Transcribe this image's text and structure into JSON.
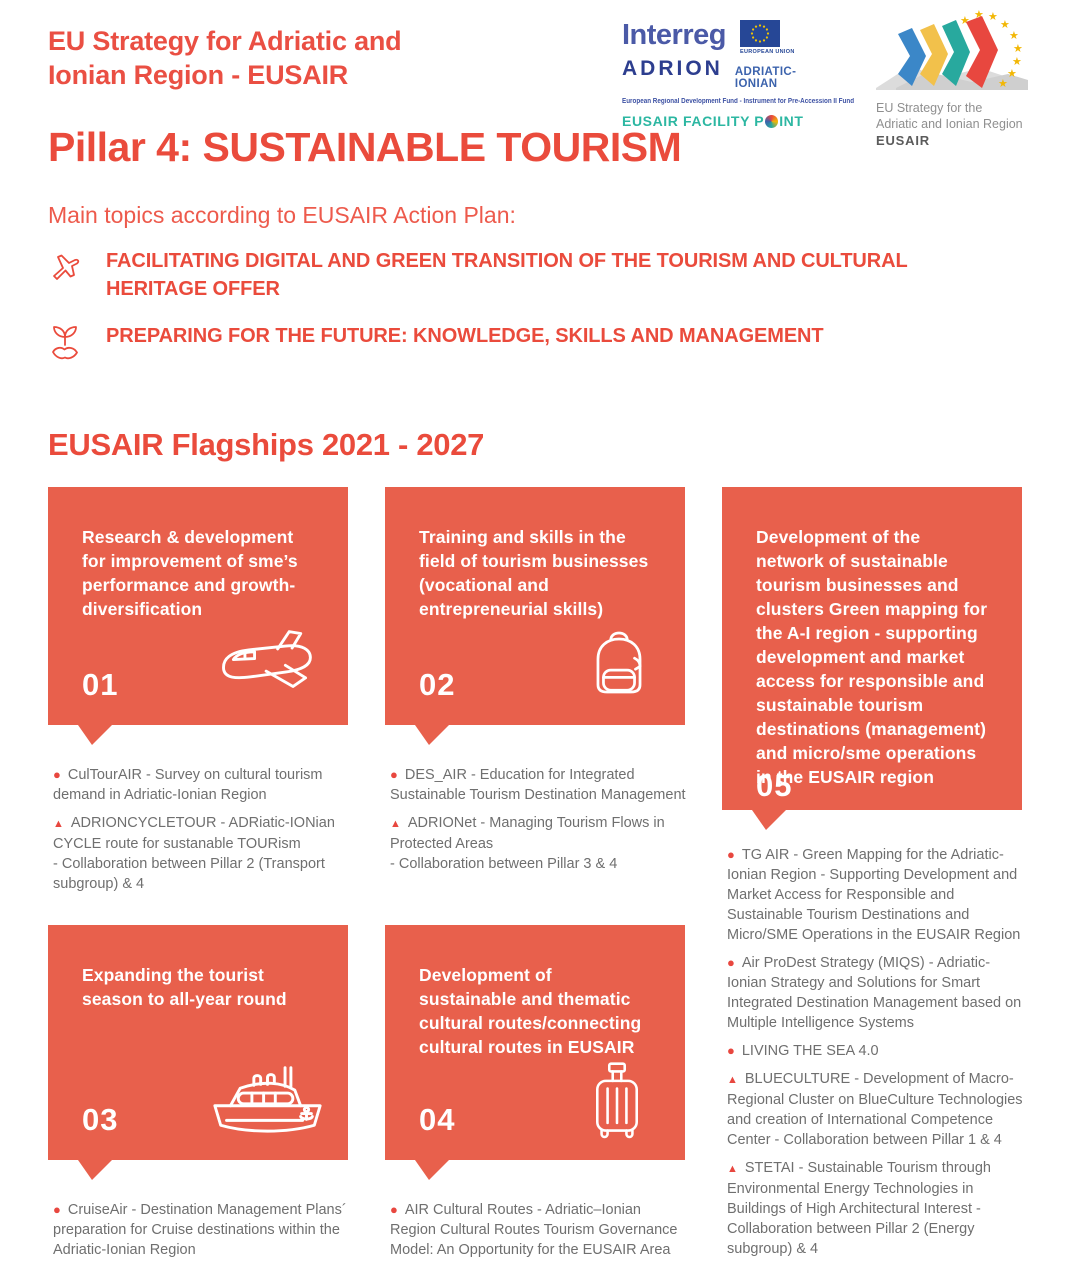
{
  "colors": {
    "accent_red": "#ea4b3c",
    "card_coral": "#e8604c",
    "bullet_text_gray": "#6f6f6f",
    "facility_teal": "#2cb7a2",
    "interreg_blue": "#3d51a3",
    "eu_flag_blue": "#264796",
    "star_gold": "#f2b705"
  },
  "header": {
    "title_line1": "EU Strategy for Adriatic and",
    "title_line2": "Ionian Region - EUSAIR",
    "logos": {
      "interreg_brand": "Interreg",
      "interreg_program": "ADRION",
      "interreg_subbrand": "ADRIATIC-IONIAN",
      "eu_label": "EUROPEAN UNION",
      "funds_line": "European Regional Development Fund - Instrument for Pre-Accession II Fund",
      "facility_prefix": "EUSAIR FACILITY P",
      "facility_suffix": "INT",
      "eusair_line1": "EU Strategy for the",
      "eusair_line2": "Adriatic and Ionian Region",
      "eusair_line3": "EUSAIR"
    }
  },
  "pillar": {
    "heading": "Pillar 4: SUSTAINABLE TOURISM"
  },
  "main_topics": {
    "intro": "Main topics according to EUSAIR Action Plan:",
    "items": [
      {
        "icon": "plane-icon",
        "text": "FACILITATING DIGITAL AND GREEN TRANSITION OF THE TOURISM AND CULTURAL HERITAGE OFFER"
      },
      {
        "icon": "hand-plant-icon",
        "text": "PREPARING FOR THE FUTURE: KNOWLEDGE, SKILLS AND MANAGEMENT"
      }
    ]
  },
  "flagships": {
    "heading": "EUSAIR Flagships 2021 - 2027",
    "cards": [
      {
        "number": "01",
        "icon": "airplane-icon",
        "title": "Research & development for improvement of sme’s performance and growth-diversification",
        "items": [
          {
            "marker": "●",
            "text": "CulTourAIR - Survey on cultural tourism demand in Adriatic-Ionian Region"
          },
          {
            "marker": "▲",
            "text": "ADRIONCYCLETOUR - ADRiatic-IONian CYCLE route for sustanable TOURism\n- Collaboration between Pillar 2 (Transport subgroup) & 4"
          }
        ]
      },
      {
        "number": "02",
        "icon": "backpack-icon",
        "title": "Training and skills in the field of tourism businesses (vocational and entrepreneurial skills)",
        "items": [
          {
            "marker": "●",
            "text": "DES_AIR - Education for Integrated Sustainable Tourism Destination Management"
          },
          {
            "marker": "▲",
            "text": "ADRIONet - Managing Tourism Flows in Protected Areas\n- Collaboration between Pillar 3 & 4"
          }
        ]
      },
      {
        "number": "03",
        "icon": "cruise-ship-icon",
        "title": "Expanding the tourist season to all-year round",
        "items": [
          {
            "marker": "●",
            "text": "CruiseAir - Destination Management Plans´ preparation for Cruise destinations within the Adriatic-Ionian Region"
          }
        ]
      },
      {
        "number": "04",
        "icon": "luggage-icon",
        "title": "Development of sustainable and thematic cultural routes/connecting cultural routes in EUSAIR",
        "items": [
          {
            "marker": "●",
            "text": "AIR Cultural Routes - Adriatic–Ionian Region Cultural Routes Tourism Governance Model: An Opportunity for the EUSAIR Area"
          }
        ]
      },
      {
        "number": "05",
        "icon": "none",
        "title": "Development of the network of sustainable tourism businesses and clusters Green mapping for the A-I region - supporting development and market access for responsible and sustainable tourism destinations (management) and micro/sme operations in the EUSAIR region",
        "items": [
          {
            "marker": "●",
            "text": "TG AIR -  Green Mapping for the  Adriatic-Ionian Region - Supporting Development and Market Access for Responsible and Sustainable Tourism Destinations and Micro/SME Operations in the EUSAIR Region"
          },
          {
            "marker": "●",
            "text": "Air ProDest Strategy (MIQS) - Adriatic-Ionian Strategy and Solutions for Smart Integrated Destination Management based on Multiple Intelligence Systems"
          },
          {
            "marker": "●",
            "text": "LIVING THE SEA 4.0"
          },
          {
            "marker": "▲",
            "text": "BLUECULTURE - Development of Macro-Regional Cluster on BlueCulture Technologies and creation of International Competence Center - Collaboration between Pillar 1 & 4"
          },
          {
            "marker": "▲",
            "text": "STETAI - Sustainable Tourism through Environmental Energy Technologies in Buildings of High Architectural Interest - Collaboration between Pillar 2 (Energy subgroup) & 4"
          }
        ]
      }
    ]
  }
}
